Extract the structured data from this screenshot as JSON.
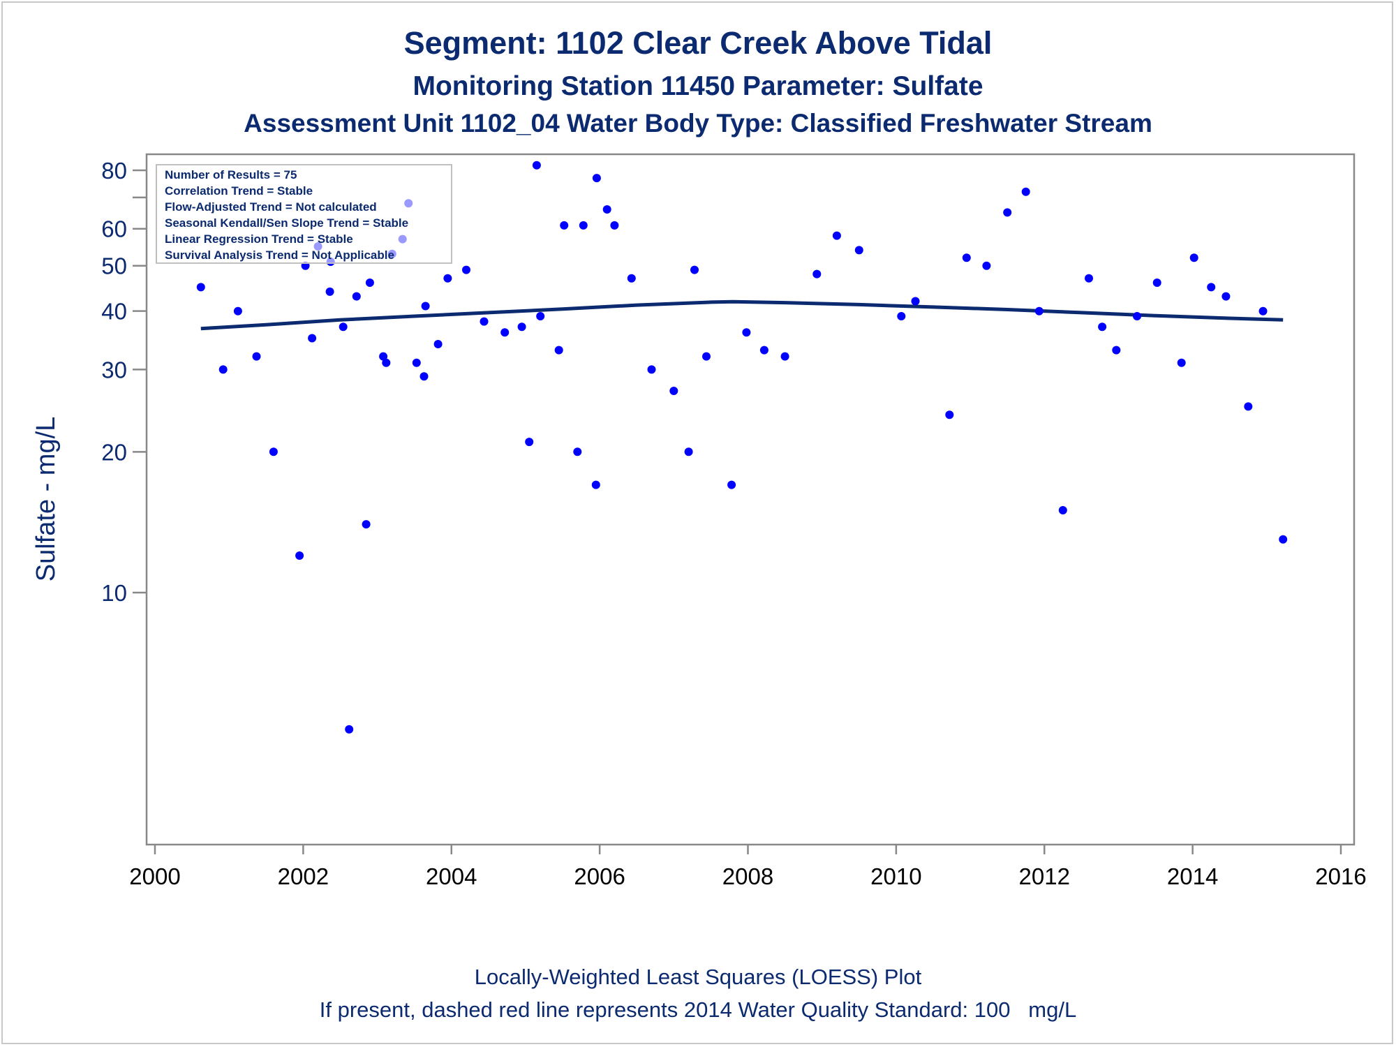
{
  "titles": {
    "line1": "Segment: 1102  Clear Creek Above Tidal",
    "line2": "Monitoring Station 11450 Parameter: Sulfate",
    "line3": "Assessment Unit 1102_04   Water Body Type: Classified Freshwater Stream"
  },
  "footnotes": {
    "line1": "Locally-Weighted Least Squares (LOESS) Plot",
    "line2": "If present, dashed red line represents 2014 Water Quality Standard: 100   mg/L"
  },
  "stats_box": [
    "Number of Results = 75",
    "Correlation Trend = Stable",
    "Flow-Adjusted Trend = Not calculated",
    "Seasonal Kendall/Sen Slope Trend = Stable",
    "Linear Regression Trend = Stable",
    "Survival Analysis Trend = Not Applicable"
  ],
  "colors": {
    "text": "#0b2a6f",
    "points": "#0000ff",
    "loess_line": "#0b2a6f",
    "axis": "#888888"
  },
  "chart_data": {
    "type": "scatter",
    "ylabel": "Sulfate - mg/L",
    "xlabel": "",
    "yscale": "log",
    "xlim": [
      2000,
      2016
    ],
    "ylim": [
      5.0,
      82
    ],
    "x_ticks": [
      2000,
      2002,
      2004,
      2006,
      2008,
      2010,
      2012,
      2014,
      2016
    ],
    "y_ticks_labeled": [
      10,
      20,
      30,
      40,
      50,
      60,
      80
    ],
    "y_ticks_minor": [
      70
    ],
    "legend": "stats box top-left",
    "series": [
      {
        "type": "scatter",
        "points": [
          [
            2000.62,
            45
          ],
          [
            2000.92,
            30
          ],
          [
            2001.12,
            40
          ],
          [
            2001.37,
            32
          ],
          [
            2001.6,
            20
          ],
          [
            2001.95,
            12
          ],
          [
            2002.03,
            50
          ],
          [
            2002.12,
            35
          ],
          [
            2002.2,
            55
          ],
          [
            2002.36,
            44
          ],
          [
            2002.37,
            51
          ],
          [
            2002.54,
            37
          ],
          [
            2002.62,
            5.1
          ],
          [
            2002.72,
            43
          ],
          [
            2002.85,
            14
          ],
          [
            2002.9,
            46
          ],
          [
            2003.08,
            32
          ],
          [
            2003.12,
            31
          ],
          [
            2003.2,
            53
          ],
          [
            2003.34,
            57
          ],
          [
            2003.42,
            68
          ],
          [
            2003.53,
            31
          ],
          [
            2003.63,
            29
          ],
          [
            2003.65,
            41
          ],
          [
            2003.82,
            34
          ],
          [
            2003.95,
            47
          ],
          [
            2004.2,
            49
          ],
          [
            2004.44,
            38
          ],
          [
            2004.72,
            36
          ],
          [
            2004.95,
            37
          ],
          [
            2005.05,
            21
          ],
          [
            2005.15,
            82
          ],
          [
            2005.2,
            39
          ],
          [
            2005.45,
            33
          ],
          [
            2005.52,
            61
          ],
          [
            2005.7,
            20
          ],
          [
            2005.78,
            61
          ],
          [
            2005.95,
            17
          ],
          [
            2005.96,
            77
          ],
          [
            2006.1,
            66
          ],
          [
            2006.2,
            61
          ],
          [
            2006.43,
            47
          ],
          [
            2006.7,
            30
          ],
          [
            2007.0,
            27
          ],
          [
            2007.2,
            20
          ],
          [
            2007.28,
            49
          ],
          [
            2007.44,
            32
          ],
          [
            2007.78,
            17
          ],
          [
            2007.98,
            36
          ],
          [
            2008.22,
            33
          ],
          [
            2008.5,
            32
          ],
          [
            2008.93,
            48
          ],
          [
            2009.2,
            58
          ],
          [
            2009.5,
            54
          ],
          [
            2010.07,
            39
          ],
          [
            2010.26,
            42
          ],
          [
            2010.72,
            24
          ],
          [
            2010.95,
            52
          ],
          [
            2011.22,
            50
          ],
          [
            2011.5,
            65
          ],
          [
            2011.75,
            72
          ],
          [
            2011.93,
            40
          ],
          [
            2012.25,
            15
          ],
          [
            2012.6,
            47
          ],
          [
            2012.78,
            37
          ],
          [
            2012.97,
            33
          ],
          [
            2013.25,
            39
          ],
          [
            2013.52,
            46
          ],
          [
            2013.85,
            31
          ],
          [
            2014.02,
            52
          ],
          [
            2014.25,
            45
          ],
          [
            2014.45,
            43
          ],
          [
            2014.75,
            25
          ],
          [
            2014.95,
            40
          ],
          [
            2015.22,
            13
          ]
        ]
      },
      {
        "type": "line",
        "points": [
          [
            2000.62,
            36.7
          ],
          [
            2001.5,
            37.4
          ],
          [
            2002.5,
            38.3
          ],
          [
            2003.5,
            39.0
          ],
          [
            2004.5,
            39.7
          ],
          [
            2005.5,
            40.4
          ],
          [
            2006.5,
            41.2
          ],
          [
            2007.5,
            41.8
          ],
          [
            2007.8,
            41.9
          ],
          [
            2008.5,
            41.7
          ],
          [
            2009.5,
            41.3
          ],
          [
            2010.5,
            40.8
          ],
          [
            2011.5,
            40.3
          ],
          [
            2012.5,
            39.7
          ],
          [
            2013.5,
            39.1
          ],
          [
            2014.5,
            38.6
          ],
          [
            2015.22,
            38.3
          ]
        ]
      }
    ]
  }
}
